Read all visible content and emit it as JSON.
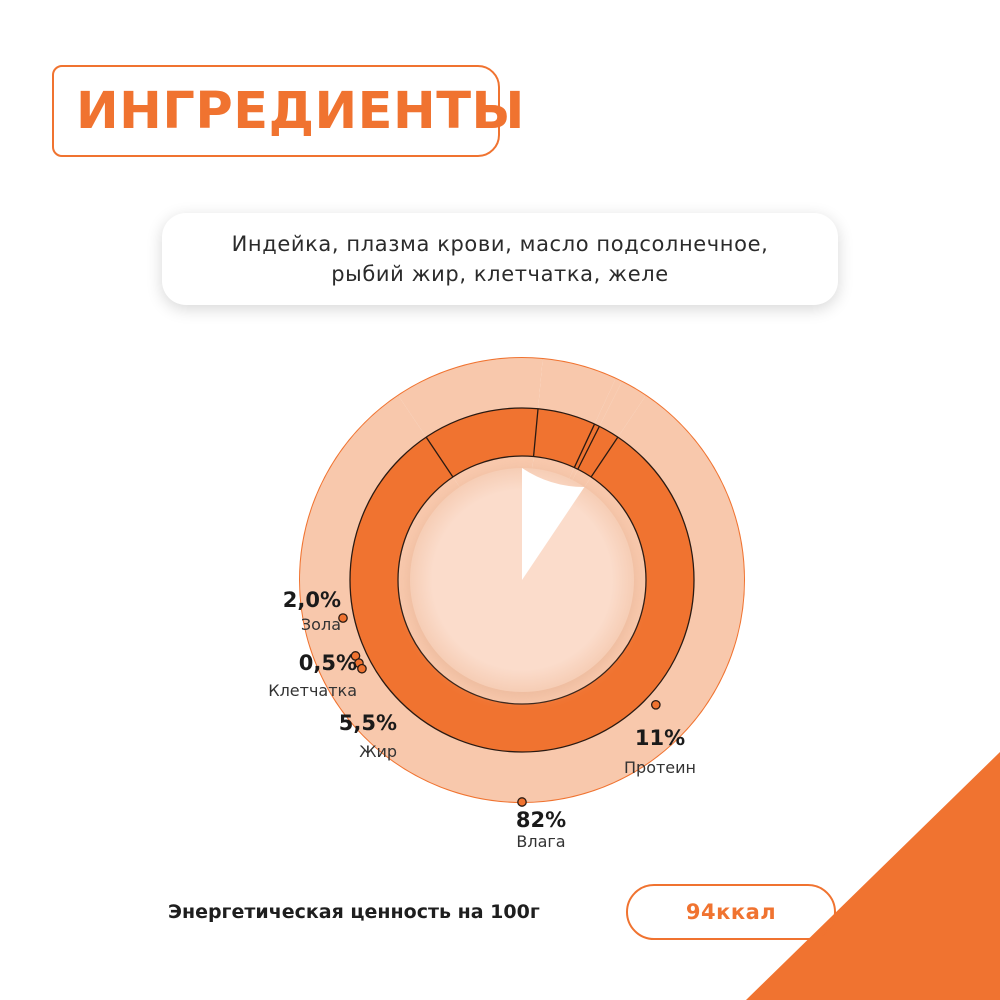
{
  "header": {
    "title": "ИНГРЕДИЕНТЫ"
  },
  "ingredients": {
    "line1": "Индейка, плазма крови, масло подсолнечное,",
    "line2": "рыбий жир, клетчатка, желе"
  },
  "chart_data": {
    "type": "pie",
    "categories": [
      "Влага",
      "Протеин",
      "Жир",
      "Клетчатка",
      "Зола"
    ],
    "values": [
      82,
      11,
      5.5,
      0.5,
      2.0
    ],
    "value_labels": [
      "82%",
      "11%",
      "5,5%",
      "0,5%",
      "2,0%"
    ],
    "unit": "%",
    "colors": {
      "accent": "#f07330",
      "light": "#f8c8ac",
      "pale": "#fbdccb",
      "outline": "#2a1a12"
    }
  },
  "energy": {
    "label": "Энергетическая ценность на 100г",
    "value": "94ккал"
  }
}
